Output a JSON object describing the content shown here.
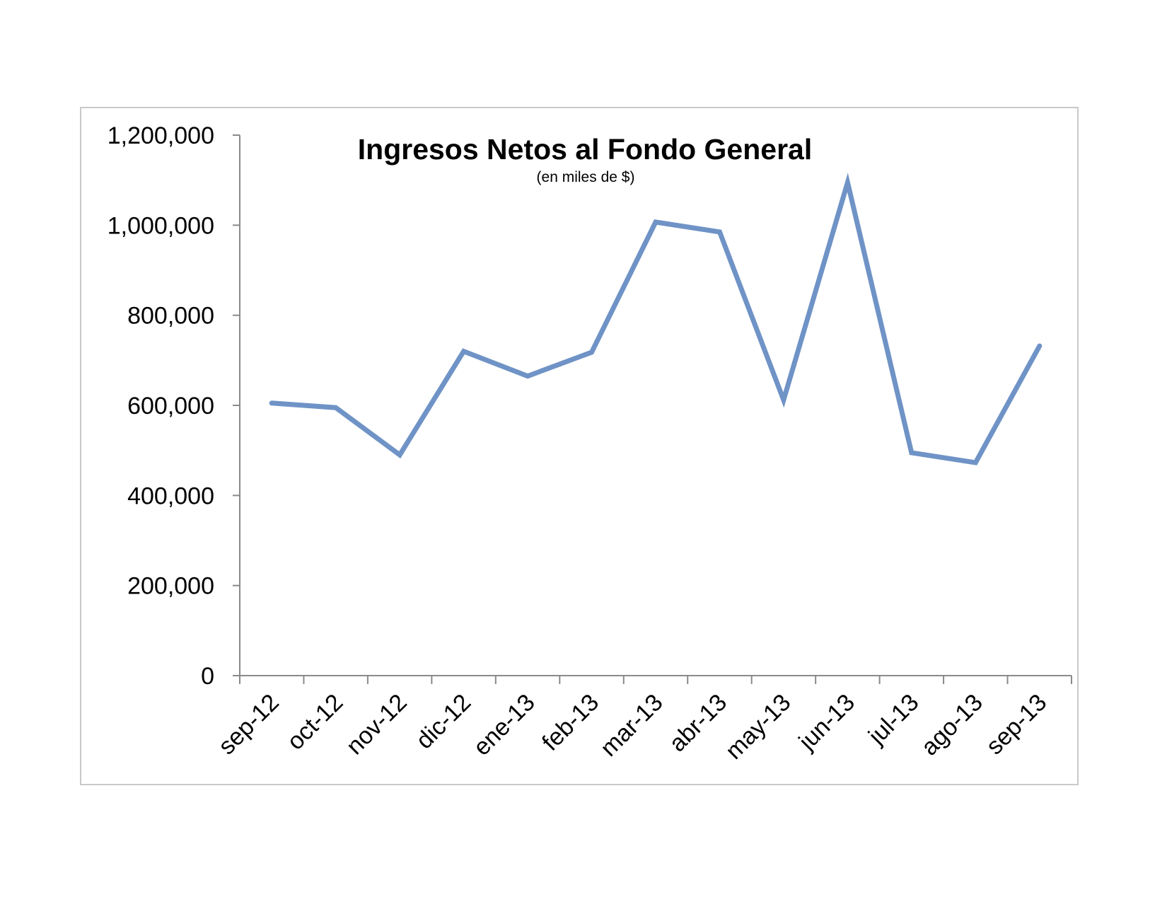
{
  "chart_data": {
    "type": "line",
    "title": "Ingresos Netos al Fondo General",
    "subtitle": "(en miles de $)",
    "categories": [
      "sep-12",
      "oct-12",
      "nov-12",
      "dic-12",
      "ene-13",
      "feb-13",
      "mar-13",
      "abr-13",
      "may-13",
      "jun-13",
      "jul-13",
      "ago-13",
      "sep-13"
    ],
    "series": [
      {
        "values": [
          605000,
          595000,
          490000,
          720000,
          665000,
          718000,
          1007000,
          985000,
          612000,
          1095000,
          495000,
          473000,
          732000
        ],
        "color": "#6f93c6"
      }
    ],
    "yticks": [
      "0",
      "200,000",
      "400,000",
      "600,000",
      "800,000",
      "1,000,000",
      "1,200,000"
    ],
    "ylim": [
      0,
      1200000
    ],
    "grid": false,
    "legend": "none"
  }
}
